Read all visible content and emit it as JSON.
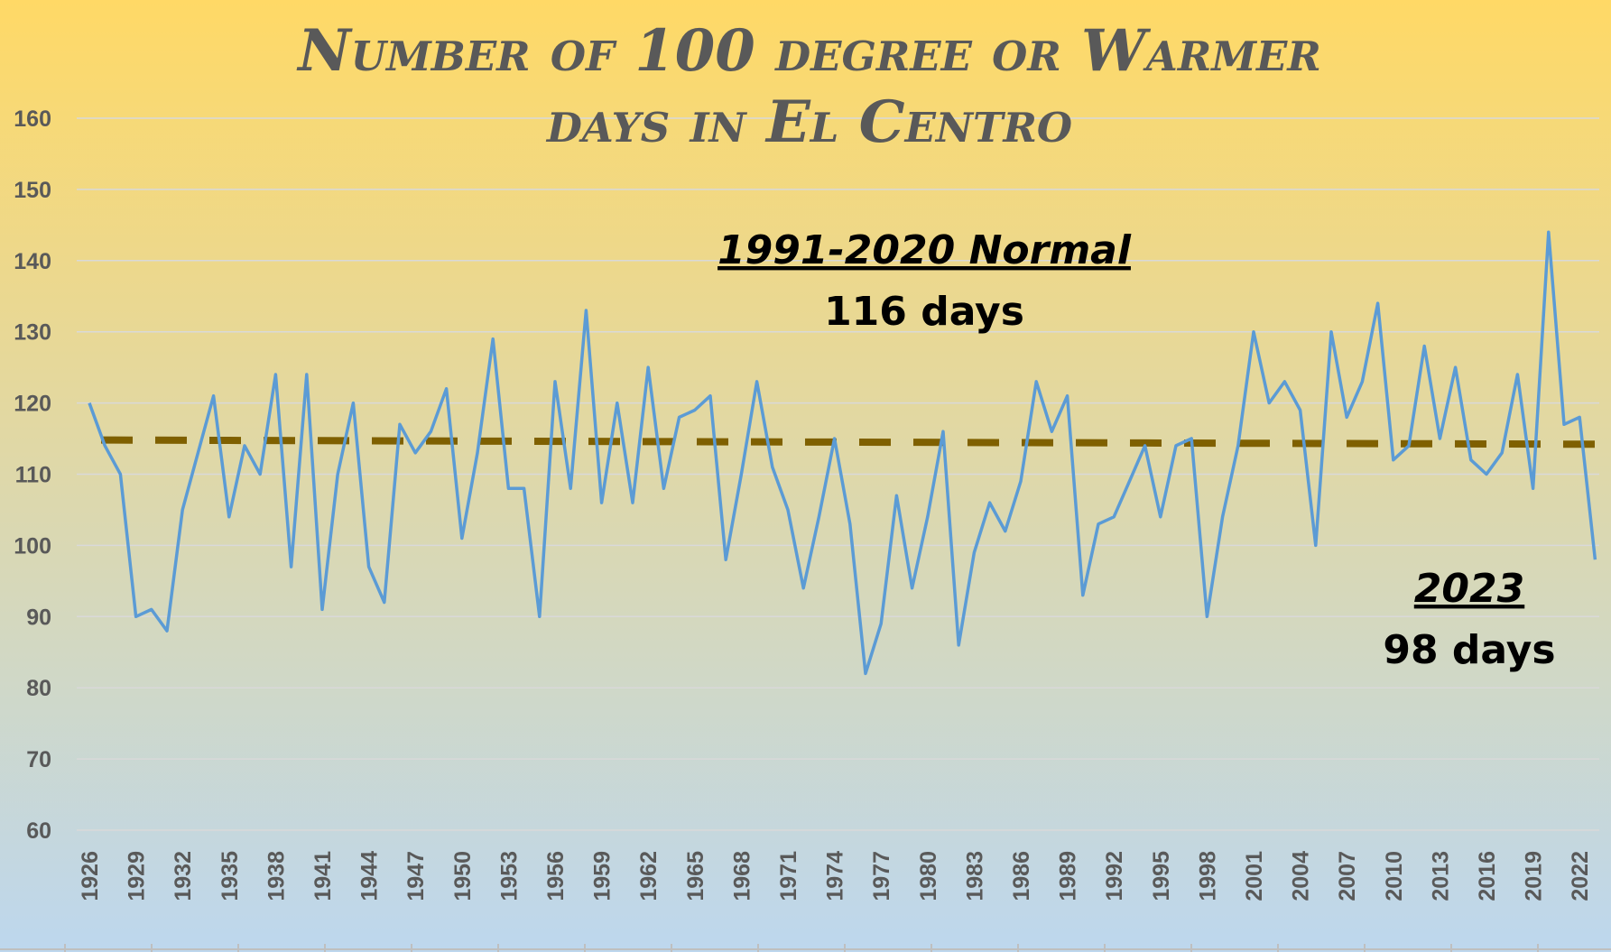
{
  "chart_data": {
    "type": "line",
    "title_line1": "Number of 100 degree or Warmer",
    "title_line2": "days in El Centro",
    "xlabel": "",
    "ylabel": "",
    "ylim": [
      60,
      160
    ],
    "y_ticks": [
      "60",
      "70",
      "80",
      "90",
      "100",
      "110",
      "120",
      "130",
      "140",
      "150",
      "160"
    ],
    "x_tick_labels": [
      "1926",
      "1929",
      "1932",
      "1935",
      "1938",
      "1941",
      "1944",
      "1947",
      "1950",
      "1953",
      "1956",
      "1959",
      "1962",
      "1965",
      "1968",
      "1971",
      "1974",
      "1977",
      "1980",
      "1983",
      "1986",
      "1989",
      "1992",
      "1995",
      "1998",
      "2001",
      "2004",
      "2007",
      "2010",
      "2013",
      "2016",
      "2019",
      "2022"
    ],
    "grid": true,
    "legend": "none",
    "x": [
      1926,
      1927,
      1928,
      1929,
      1930,
      1931,
      1932,
      1933,
      1934,
      1935,
      1936,
      1937,
      1938,
      1939,
      1940,
      1941,
      1942,
      1943,
      1944,
      1945,
      1946,
      1947,
      1948,
      1949,
      1950,
      1951,
      1952,
      1953,
      1954,
      1955,
      1956,
      1957,
      1958,
      1959,
      1960,
      1961,
      1962,
      1963,
      1964,
      1965,
      1966,
      1967,
      1968,
      1969,
      1970,
      1971,
      1972,
      1973,
      1974,
      1975,
      1976,
      1977,
      1978,
      1979,
      1980,
      1981,
      1982,
      1983,
      1984,
      1985,
      1986,
      1987,
      1988,
      1989,
      1990,
      1991,
      1992,
      1993,
      1994,
      1995,
      1996,
      1997,
      1998,
      1999,
      2000,
      2001,
      2002,
      2003,
      2004,
      2005,
      2006,
      2007,
      2008,
      2009,
      2010,
      2011,
      2012,
      2013,
      2014,
      2015,
      2016,
      2017,
      2018,
      2019,
      2020,
      2021,
      2022,
      2023
    ],
    "series": [
      {
        "values": [
          120,
          114,
          110,
          90,
          91,
          88,
          105,
          113,
          121,
          104,
          114,
          110,
          124,
          97,
          124,
          91,
          110,
          120,
          97,
          92,
          117,
          113,
          116,
          122,
          101,
          113,
          129,
          108,
          108,
          90,
          123,
          108,
          133,
          106,
          120,
          106,
          125,
          108,
          118,
          119,
          121,
          98,
          110,
          123,
          111,
          105,
          94,
          104,
          115,
          103,
          82,
          89,
          107,
          94,
          104,
          116,
          86,
          99,
          106,
          102,
          109,
          123,
          116,
          121,
          93,
          103,
          104,
          109,
          114,
          104,
          114,
          115,
          90,
          104,
          114,
          130,
          120,
          123,
          119,
          100,
          130,
          118,
          123,
          134,
          112,
          114,
          128,
          115,
          125,
          112,
          110,
          113,
          124,
          108,
          144,
          117,
          118,
          98
        ],
        "color": "#5B9BD5"
      },
      {
        "type": "trend",
        "start_value": 114.8,
        "end_value": 114.2,
        "color": "#7F6000",
        "style": "dashed"
      }
    ],
    "annotations": [
      {
        "heading": "1991-2020 Normal",
        "text": "116 days"
      },
      {
        "heading": "2023",
        "text": "98 days"
      }
    ],
    "colors": {
      "background_top": "#FFD966",
      "background_bottom": "#BDD7EE",
      "gridline": "#D9D9D9",
      "tick_text": "#595959",
      "title_text": "#595959"
    }
  }
}
